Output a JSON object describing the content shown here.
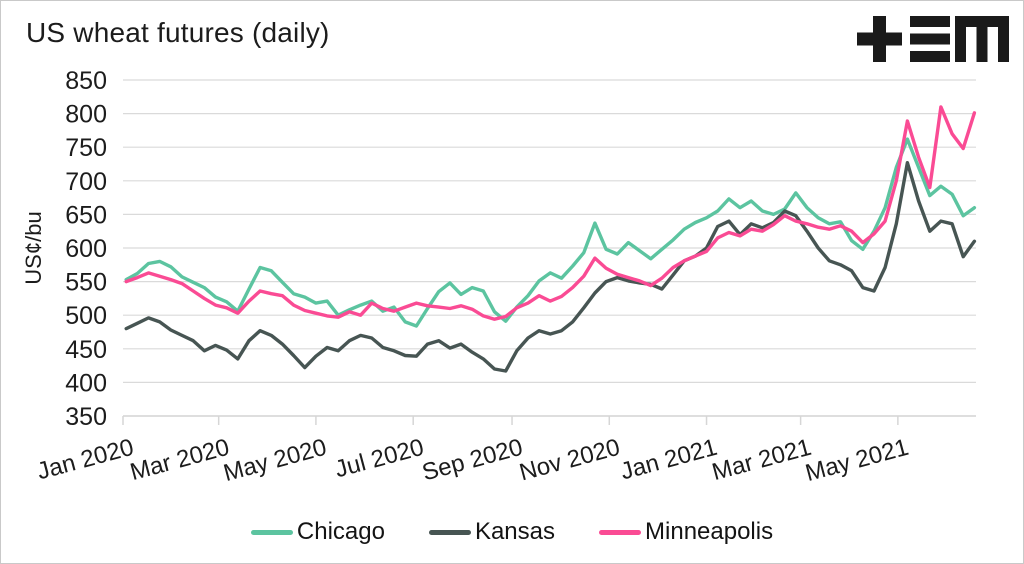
{
  "header": {
    "title": "US wheat futures (daily)",
    "logo_name": "tem-logo",
    "logo_color": "#1a1a1a"
  },
  "chart_data": {
    "type": "line",
    "title": "US wheat futures (daily)",
    "xlabel": "",
    "ylabel": "US¢/bu",
    "ylim": [
      350,
      850
    ],
    "y_ticks": [
      350,
      400,
      450,
      500,
      550,
      600,
      650,
      700,
      750,
      800,
      850
    ],
    "x_range": [
      "2020-01-01",
      "2021-06-19"
    ],
    "x_ticks": [
      {
        "label": "Jan 2020",
        "date": "2020-01-01"
      },
      {
        "label": "Mar 2020",
        "date": "2020-03-01"
      },
      {
        "label": "May 2020",
        "date": "2020-05-01"
      },
      {
        "label": "Jul 2020",
        "date": "2020-07-01"
      },
      {
        "label": "Sep 2020",
        "date": "2020-09-01"
      },
      {
        "label": "Nov 2020",
        "date": "2020-11-01"
      },
      {
        "label": "Jan 2021",
        "date": "2021-01-01"
      },
      {
        "label": "Mar 2021",
        "date": "2021-03-01"
      },
      {
        "label": "May 2021",
        "date": "2021-05-01"
      }
    ],
    "grid": "horizontal",
    "legend_position": "bottom-center",
    "style": {
      "grid_color": "#dadada",
      "axis_color": "#d6d6d6",
      "text_color": "#1c1c1c",
      "line_width": 3.4
    },
    "dates": [
      "2020-01-03",
      "2020-01-10",
      "2020-01-17",
      "2020-01-24",
      "2020-01-31",
      "2020-02-07",
      "2020-02-14",
      "2020-02-21",
      "2020-02-28",
      "2020-03-06",
      "2020-03-13",
      "2020-03-20",
      "2020-03-27",
      "2020-04-03",
      "2020-04-10",
      "2020-04-17",
      "2020-04-24",
      "2020-05-01",
      "2020-05-08",
      "2020-05-15",
      "2020-05-22",
      "2020-05-29",
      "2020-06-05",
      "2020-06-12",
      "2020-06-19",
      "2020-06-26",
      "2020-07-03",
      "2020-07-10",
      "2020-07-17",
      "2020-07-24",
      "2020-07-31",
      "2020-08-07",
      "2020-08-14",
      "2020-08-21",
      "2020-08-28",
      "2020-09-04",
      "2020-09-11",
      "2020-09-18",
      "2020-09-25",
      "2020-10-02",
      "2020-10-09",
      "2020-10-16",
      "2020-10-23",
      "2020-10-30",
      "2020-11-06",
      "2020-11-13",
      "2020-11-20",
      "2020-11-27",
      "2020-12-04",
      "2020-12-11",
      "2020-12-18",
      "2020-12-25",
      "2021-01-01",
      "2021-01-08",
      "2021-01-15",
      "2021-01-22",
      "2021-01-29",
      "2021-02-05",
      "2021-02-12",
      "2021-02-19",
      "2021-02-26",
      "2021-03-05",
      "2021-03-12",
      "2021-03-19",
      "2021-03-26",
      "2021-04-02",
      "2021-04-09",
      "2021-04-16",
      "2021-04-23",
      "2021-04-30",
      "2021-05-07",
      "2021-05-14",
      "2021-05-21",
      "2021-05-28",
      "2021-06-04",
      "2021-06-11",
      "2021-06-18"
    ],
    "series": [
      {
        "name": "Chicago",
        "color": "#5cc4a0",
        "values": [
          553,
          562,
          577,
          580,
          572,
          557,
          549,
          541,
          527,
          520,
          506,
          539,
          571,
          566,
          549,
          532,
          527,
          518,
          521,
          500,
          508,
          515,
          521,
          506,
          512,
          490,
          484,
          510,
          535,
          548,
          531,
          541,
          536,
          505,
          491,
          512,
          529,
          551,
          563,
          555,
          573,
          593,
          637,
          598,
          591,
          608,
          596,
          584,
          598,
          612,
          628,
          638,
          645,
          655,
          673,
          660,
          670,
          655,
          650,
          658,
          682,
          660,
          645,
          636,
          639,
          611,
          598,
          625,
          660,
          720,
          762,
          720,
          678,
          692,
          680,
          648,
          660
        ]
      },
      {
        "name": "Kansas",
        "color": "#475553",
        "values": [
          480,
          488,
          496,
          490,
          478,
          470,
          462,
          447,
          455,
          448,
          435,
          462,
          477,
          470,
          457,
          440,
          422,
          439,
          452,
          447,
          462,
          470,
          466,
          452,
          447,
          440,
          439,
          457,
          462,
          451,
          457,
          445,
          435,
          420,
          417,
          447,
          466,
          477,
          472,
          477,
          490,
          511,
          533,
          550,
          556,
          551,
          548,
          546,
          539,
          560,
          581,
          588,
          600,
          632,
          640,
          620,
          636,
          630,
          638,
          655,
          648,
          625,
          600,
          581,
          575,
          566,
          541,
          536,
          571,
          636,
          727,
          670,
          625,
          640,
          636,
          587,
          610
        ]
      },
      {
        "name": "Minneapolis",
        "color": "#fa4b94",
        "values": [
          550,
          556,
          563,
          558,
          553,
          547,
          536,
          525,
          515,
          511,
          503,
          521,
          536,
          532,
          529,
          515,
          507,
          503,
          499,
          497,
          505,
          500,
          518,
          510,
          506,
          512,
          518,
          514,
          512,
          510,
          514,
          509,
          499,
          494,
          498,
          511,
          518,
          529,
          521,
          528,
          541,
          558,
          585,
          570,
          561,
          556,
          551,
          544,
          555,
          571,
          581,
          588,
          595,
          615,
          623,
          618,
          628,
          625,
          635,
          648,
          640,
          636,
          631,
          628,
          633,
          625,
          608,
          621,
          640,
          700,
          789,
          735,
          690,
          810,
          770,
          748,
          801
        ]
      }
    ]
  }
}
